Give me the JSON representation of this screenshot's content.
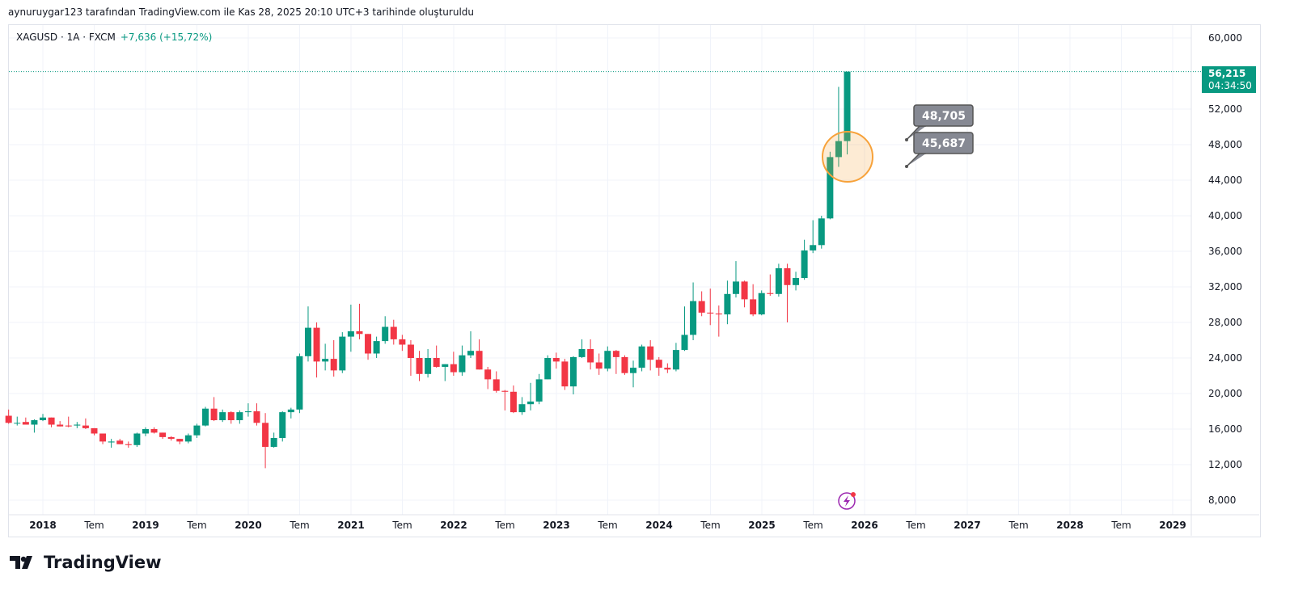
{
  "caption": "aynuruygar123 tarafından TradingView.com ile Kas 28, 2025 20:10 UTC+3 tarihinde oluşturuldu",
  "symbol": "XAGUSD · 1A · FXCM",
  "change": "+7,636 (+15,72%)",
  "logo": "TradingView",
  "colors": {
    "up": "#089981",
    "down": "#f23645",
    "grid": "#f0f3fa",
    "callout": "#868993",
    "circle": "#f7a23a"
  },
  "price_label": {
    "price": "56,215",
    "countdown": "04:34:50"
  },
  "callouts": [
    "48,705",
    "45,687"
  ],
  "chart_data": {
    "type": "candlestick",
    "title": "XAGUSD · 1A · FXCM",
    "start": "2017-09",
    "interval": "1 month",
    "ylim": [
      6.5,
      62
    ],
    "yticks": [
      "8,000",
      "12,000",
      "16,000",
      "20,000",
      "24,000",
      "28,000",
      "32,000",
      "36,000",
      "40,000",
      "44,000",
      "48,000",
      "52,000",
      "60,000"
    ],
    "ytick_values": [
      8,
      12,
      16,
      20,
      24,
      28,
      32,
      36,
      40,
      44,
      48,
      52,
      60
    ],
    "xticks": [
      "2018",
      "Tem",
      "2019",
      "Tem",
      "2020",
      "Tem",
      "2021",
      "Tem",
      "2022",
      "Tem",
      "2023",
      "Tem",
      "2024",
      "Tem",
      "2025",
      "Tem",
      "2026",
      "Tem",
      "2027",
      "Tem",
      "2028",
      "Tem",
      "2029"
    ],
    "ohlc": [
      [
        17.5,
        18.2,
        16.6,
        16.7
      ],
      [
        16.7,
        17.4,
        16.4,
        16.7
      ],
      [
        16.8,
        17.3,
        16.6,
        16.5
      ],
      [
        16.5,
        17.1,
        15.6,
        17.0
      ],
      [
        17.0,
        17.7,
        16.9,
        17.3
      ],
      [
        17.3,
        17.3,
        16.2,
        16.5
      ],
      [
        16.5,
        16.9,
        16.3,
        16.3
      ],
      [
        16.4,
        17.4,
        16.2,
        16.3
      ],
      [
        16.4,
        16.8,
        16.1,
        16.5
      ],
      [
        16.4,
        17.2,
        16.0,
        16.1
      ],
      [
        16.1,
        16.1,
        15.3,
        15.5
      ],
      [
        15.5,
        15.5,
        14.3,
        14.6
      ],
      [
        14.5,
        14.9,
        13.9,
        14.6
      ],
      [
        14.7,
        14.9,
        14.3,
        14.3
      ],
      [
        14.3,
        14.6,
        13.9,
        14.2
      ],
      [
        14.2,
        15.6,
        14.0,
        15.5
      ],
      [
        15.5,
        16.2,
        15.2,
        16.0
      ],
      [
        16.0,
        16.2,
        15.5,
        15.6
      ],
      [
        15.6,
        15.6,
        14.9,
        15.1
      ],
      [
        15.1,
        15.2,
        14.7,
        14.9
      ],
      [
        14.9,
        14.9,
        14.3,
        14.6
      ],
      [
        14.6,
        15.5,
        14.4,
        15.3
      ],
      [
        15.3,
        16.6,
        15.0,
        16.4
      ],
      [
        16.4,
        18.5,
        16.3,
        18.3
      ],
      [
        18.3,
        19.6,
        16.9,
        17.0
      ],
      [
        17.0,
        18.2,
        16.8,
        17.9
      ],
      [
        17.9,
        18.0,
        16.6,
        17.0
      ],
      [
        17.0,
        18.1,
        16.6,
        17.9
      ],
      [
        17.9,
        18.9,
        17.4,
        18.0
      ],
      [
        18.0,
        18.9,
        16.4,
        16.7
      ],
      [
        16.7,
        17.8,
        11.6,
        14.0
      ],
      [
        14.0,
        15.6,
        13.9,
        15.0
      ],
      [
        15.0,
        18.0,
        14.6,
        17.9
      ],
      [
        17.9,
        18.4,
        17.2,
        18.2
      ],
      [
        18.2,
        24.5,
        17.8,
        24.2
      ],
      [
        24.2,
        29.8,
        23.6,
        27.4
      ],
      [
        27.4,
        28.0,
        21.8,
        23.6
      ],
      [
        23.6,
        25.6,
        22.6,
        23.9
      ],
      [
        23.9,
        26.0,
        21.9,
        22.6
      ],
      [
        22.6,
        26.9,
        22.3,
        26.4
      ],
      [
        26.4,
        30.0,
        24.7,
        27.0
      ],
      [
        27.0,
        30.1,
        26.1,
        26.7
      ],
      [
        26.7,
        26.7,
        23.8,
        24.5
      ],
      [
        24.5,
        26.4,
        24.0,
        25.9
      ],
      [
        25.9,
        28.7,
        25.6,
        27.5
      ],
      [
        27.5,
        28.3,
        25.5,
        26.1
      ],
      [
        26.1,
        26.6,
        24.8,
        25.5
      ],
      [
        25.5,
        26.0,
        22.0,
        24.0
      ],
      [
        24.0,
        24.8,
        21.4,
        22.2
      ],
      [
        22.2,
        25.0,
        21.8,
        24.0
      ],
      [
        24.0,
        25.4,
        22.9,
        23.0
      ],
      [
        23.0,
        23.3,
        21.4,
        23.3
      ],
      [
        23.3,
        24.7,
        22.0,
        22.4
      ],
      [
        22.4,
        25.4,
        22.0,
        24.3
      ],
      [
        24.3,
        27.0,
        24.0,
        24.8
      ],
      [
        24.8,
        26.1,
        22.7,
        22.7
      ],
      [
        22.7,
        23.0,
        20.5,
        21.6
      ],
      [
        21.6,
        22.5,
        20.1,
        20.3
      ],
      [
        20.3,
        20.4,
        18.1,
        20.2
      ],
      [
        20.2,
        20.9,
        17.8,
        17.9
      ],
      [
        17.9,
        19.6,
        17.6,
        18.8
      ],
      [
        18.8,
        21.2,
        18.1,
        19.1
      ],
      [
        19.1,
        22.2,
        18.8,
        21.6
      ],
      [
        21.6,
        24.3,
        21.6,
        24.0
      ],
      [
        24.0,
        24.6,
        22.8,
        23.6
      ],
      [
        23.6,
        23.9,
        20.4,
        20.8
      ],
      [
        20.8,
        24.2,
        19.9,
        24.1
      ],
      [
        24.1,
        26.1,
        24.0,
        25.0
      ],
      [
        25.0,
        26.1,
        22.7,
        23.5
      ],
      [
        23.5,
        24.5,
        22.1,
        22.8
      ],
      [
        22.8,
        25.3,
        22.5,
        24.8
      ],
      [
        24.8,
        24.9,
        22.2,
        24.1
      ],
      [
        24.1,
        24.3,
        22.1,
        22.3
      ],
      [
        22.3,
        23.7,
        20.7,
        22.9
      ],
      [
        22.9,
        25.5,
        22.5,
        25.3
      ],
      [
        25.3,
        26.0,
        22.6,
        23.8
      ],
      [
        23.8,
        24.1,
        22.0,
        22.9
      ],
      [
        22.9,
        23.4,
        22.3,
        22.7
      ],
      [
        22.7,
        25.7,
        22.5,
        24.9
      ],
      [
        24.9,
        29.8,
        24.8,
        26.6
      ],
      [
        26.6,
        32.5,
        26.0,
        30.4
      ],
      [
        30.4,
        31.5,
        28.7,
        29.1
      ],
      [
        29.1,
        31.8,
        27.7,
        29.0
      ],
      [
        29.0,
        29.9,
        26.4,
        28.9
      ],
      [
        28.9,
        32.7,
        27.8,
        31.2
      ],
      [
        31.2,
        34.9,
        30.8,
        32.6
      ],
      [
        32.6,
        32.7,
        29.7,
        30.6
      ],
      [
        30.6,
        32.3,
        28.7,
        28.9
      ],
      [
        28.9,
        31.6,
        28.8,
        31.3
      ],
      [
        31.3,
        33.4,
        31.0,
        31.2
      ],
      [
        31.2,
        34.6,
        30.9,
        34.1
      ],
      [
        34.1,
        34.6,
        28.0,
        32.2
      ],
      [
        32.2,
        33.7,
        31.6,
        33.0
      ],
      [
        33.0,
        37.3,
        32.8,
        36.1
      ],
      [
        36.1,
        39.5,
        35.8,
        36.7
      ],
      [
        36.7,
        40.0,
        36.3,
        39.7
      ],
      [
        39.7,
        47.2,
        39.6,
        46.6
      ],
      [
        46.6,
        54.5,
        45.5,
        48.4
      ],
      [
        48.4,
        56.2,
        46.9,
        56.215
      ]
    ],
    "last_price": 56.215,
    "annotations": [
      {
        "type": "circle",
        "around": "2025-10"
      },
      {
        "type": "price_callout",
        "value": 48.705
      },
      {
        "type": "price_callout",
        "value": 45.687
      }
    ]
  }
}
